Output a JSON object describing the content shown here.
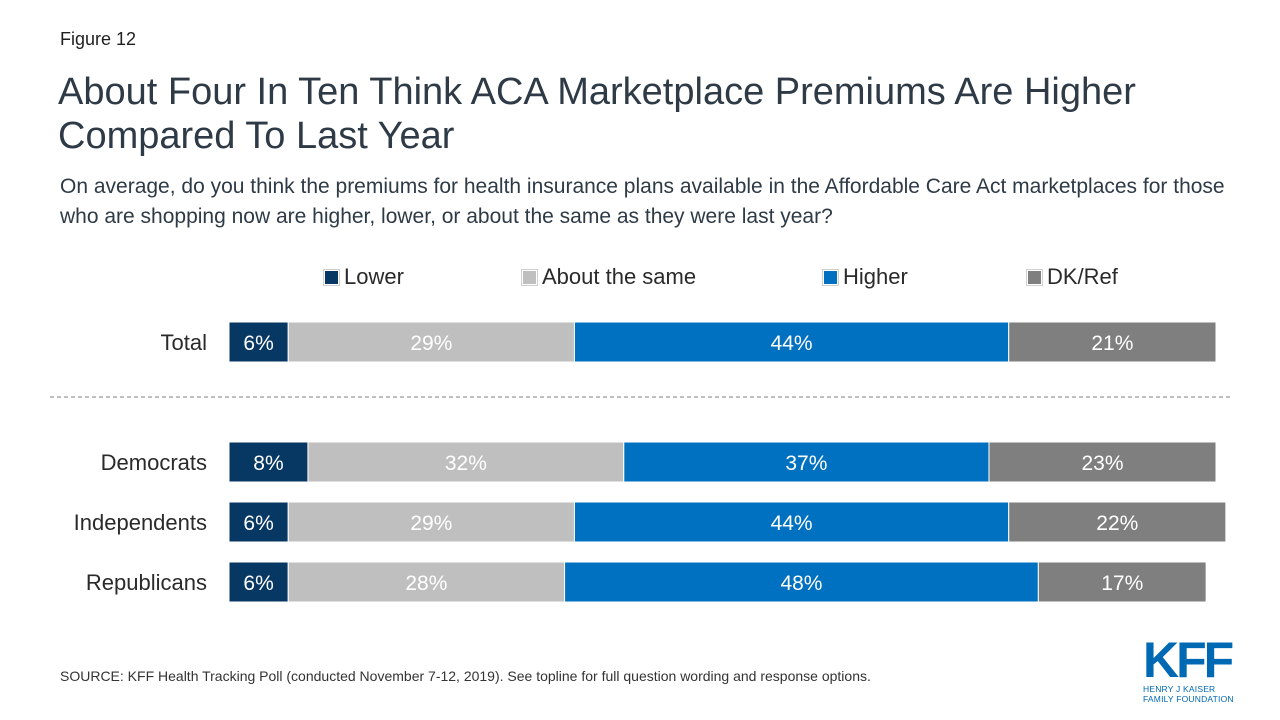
{
  "figure_label": "Figure 12",
  "title": "About Four In Ten Think ACA Marketplace Premiums Are Higher Compared To Last Year",
  "subtitle": "On average, do you think the premiums for health insurance plans available in the Affordable Care Act marketplaces for those who are shopping now are higher, lower, or about the same as they were last year?",
  "source": "SOURCE: KFF Health Tracking Poll (conducted November 7-12, 2019). See topline for full question wording and response options.",
  "logo": {
    "name": "KFF",
    "line1": "HENRY J KAISER",
    "line2": "FAMILY FOUNDATION"
  },
  "colors": {
    "Lower": "#073763",
    "About the same": "#bfbfbf",
    "Higher": "#0070c0",
    "DK/Ref": "#7f7f7f"
  },
  "chart_data": {
    "type": "bar",
    "orientation": "horizontal",
    "stacked": true,
    "categories": [
      "Total",
      "Democrats",
      "Independents",
      "Republicans"
    ],
    "series": [
      {
        "name": "Lower",
        "values": [
          6,
          8,
          6,
          6
        ]
      },
      {
        "name": "About the same",
        "values": [
          29,
          32,
          29,
          28
        ]
      },
      {
        "name": "Higher",
        "values": [
          44,
          37,
          44,
          48
        ]
      },
      {
        "name": "DK/Ref",
        "values": [
          21,
          23,
          22,
          17
        ]
      }
    ],
    "value_suffix": "%",
    "separator_after": "Total",
    "legend_position": "top",
    "grid": false
  }
}
